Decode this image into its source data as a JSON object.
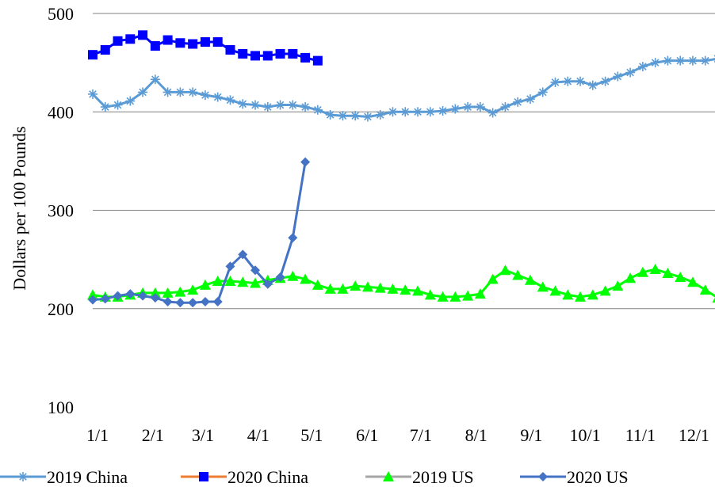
{
  "chart_data": {
    "type": "line",
    "title": "",
    "xlabel": "",
    "ylabel": "Dollars per 100 Pounds",
    "ylim": [
      100,
      500
    ],
    "yticks": [
      "100",
      "200",
      "300",
      "400",
      "500"
    ],
    "grid": true,
    "legend_position": "bottom",
    "xticks": [
      "1/1",
      "2/1",
      "3/1",
      "4/1",
      "5/1",
      "6/1",
      "7/1",
      "8/1",
      "9/1",
      "10/1",
      "11/1",
      "12/1"
    ],
    "colors": {
      "2019 China": "#5b9bd5",
      "2020 China": "#0000ff",
      "2019 US": "#00ff00",
      "2020 US": "#4472c4",
      "legend_2020_china_line": "#ed7d31",
      "legend_2019_us_line": "#a5a5a5",
      "grid": "#808080"
    },
    "series": [
      {
        "name": "2019 China",
        "marker": "star",
        "values": [
          418,
          405,
          407,
          411,
          420,
          433,
          420,
          420,
          420,
          417,
          415,
          412,
          408,
          407,
          405,
          407,
          407,
          405,
          402,
          397,
          396,
          396,
          395,
          397,
          400,
          400,
          400,
          400,
          401,
          403,
          405,
          405,
          399,
          405,
          410,
          413,
          420,
          430,
          431,
          431,
          427,
          431,
          436,
          440,
          446,
          450,
          452,
          452,
          452,
          452,
          454,
          454,
          454
        ]
      },
      {
        "name": "2020 China",
        "marker": "square",
        "values": [
          458,
          463,
          472,
          474,
          478,
          467,
          473,
          470,
          469,
          471,
          471,
          463,
          459,
          457,
          457,
          459,
          459,
          455,
          452
        ]
      },
      {
        "name": "2019 US",
        "marker": "triangle",
        "values": [
          214,
          212,
          212,
          214,
          216,
          216,
          216,
          217,
          219,
          224,
          228,
          228,
          227,
          226,
          229,
          231,
          233,
          230,
          224,
          220,
          220,
          223,
          222,
          221,
          220,
          219,
          218,
          214,
          212,
          212,
          213,
          215,
          230,
          239,
          234,
          229,
          222,
          218,
          214,
          212,
          214,
          218,
          223,
          231,
          237,
          240,
          236,
          232,
          227,
          219,
          211,
          209,
          209
        ]
      },
      {
        "name": "2020 US",
        "marker": "diamond",
        "values": [
          209,
          210,
          213,
          215,
          213,
          211,
          207,
          206,
          206,
          207,
          207,
          243,
          255,
          239,
          225,
          232,
          272,
          349
        ]
      }
    ]
  }
}
